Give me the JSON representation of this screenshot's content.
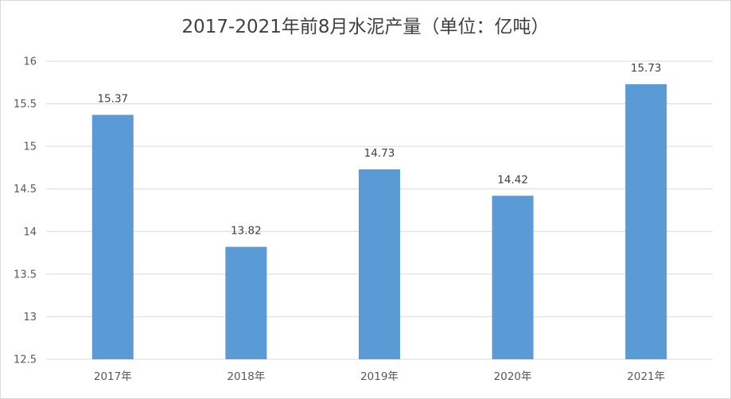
{
  "chart_data": {
    "type": "bar",
    "title": "2017-2021年前8月水泥产量（单位：亿吨）",
    "categories": [
      "2017年",
      "2018年",
      "2019年",
      "2020年",
      "2021年"
    ],
    "values": [
      15.37,
      13.82,
      14.73,
      14.42,
      15.73
    ],
    "data_labels": [
      "15.37",
      "13.82",
      "14.73",
      "14.42",
      "15.73"
    ],
    "ylim": [
      12.5,
      16
    ],
    "yticks": [
      "12.5",
      "13",
      "13.5",
      "14",
      "14.5",
      "15",
      "15.5",
      "16"
    ],
    "xlabel": "",
    "ylabel": "",
    "grid": true,
    "bar_color": "#5b9bd5",
    "grid_color": "#d9d9d9"
  }
}
